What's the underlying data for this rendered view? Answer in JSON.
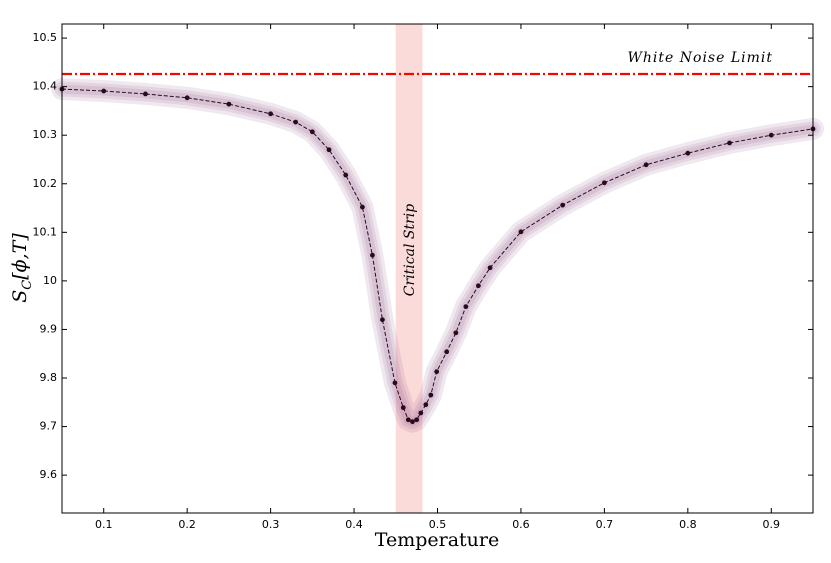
{
  "chart_data": {
    "type": "line",
    "xlabel": "Temperature",
    "ylabel": {
      "symbol": "S",
      "subscript": "C",
      "args": "[ϕ,T]"
    },
    "x": [
      0.05,
      0.1,
      0.15,
      0.2,
      0.25,
      0.3,
      0.33,
      0.35,
      0.37,
      0.39,
      0.41,
      0.422,
      0.434,
      0.449,
      0.459,
      0.465,
      0.47,
      0.475,
      0.48,
      0.486,
      0.492,
      0.499,
      0.511,
      0.522,
      0.534,
      0.549,
      0.563,
      0.6,
      0.65,
      0.7,
      0.75,
      0.8,
      0.85,
      0.9,
      0.95
    ],
    "values": [
      10.395,
      10.391,
      10.385,
      10.377,
      10.364,
      10.344,
      10.327,
      10.307,
      10.27,
      10.218,
      10.152,
      10.053,
      9.92,
      9.79,
      9.739,
      9.714,
      9.71,
      9.714,
      9.728,
      9.745,
      9.765,
      9.813,
      9.854,
      9.893,
      9.947,
      9.99,
      10.027,
      10.101,
      10.156,
      10.202,
      10.239,
      10.263,
      10.284,
      10.3,
      10.313
    ],
    "color": "#2a0a1e",
    "xlim": [
      0.05,
      0.95
    ],
    "ylim": [
      9.522,
      10.529
    ],
    "xticks": [
      0.1,
      0.2,
      0.3,
      0.4,
      0.5,
      0.6,
      0.7,
      0.8,
      0.9
    ],
    "yticks": [
      9.6,
      9.7,
      9.8,
      9.9,
      10,
      10.1,
      10.2,
      10.3,
      10.4,
      10.5
    ],
    "grid": false,
    "hline": {
      "value": 10.426,
      "label": "White Noise Limit",
      "color": "#ff0000"
    },
    "vspan": {
      "range": [
        0.45,
        0.482
      ],
      "label": "Critical Strip",
      "color": "#fbdada"
    }
  }
}
